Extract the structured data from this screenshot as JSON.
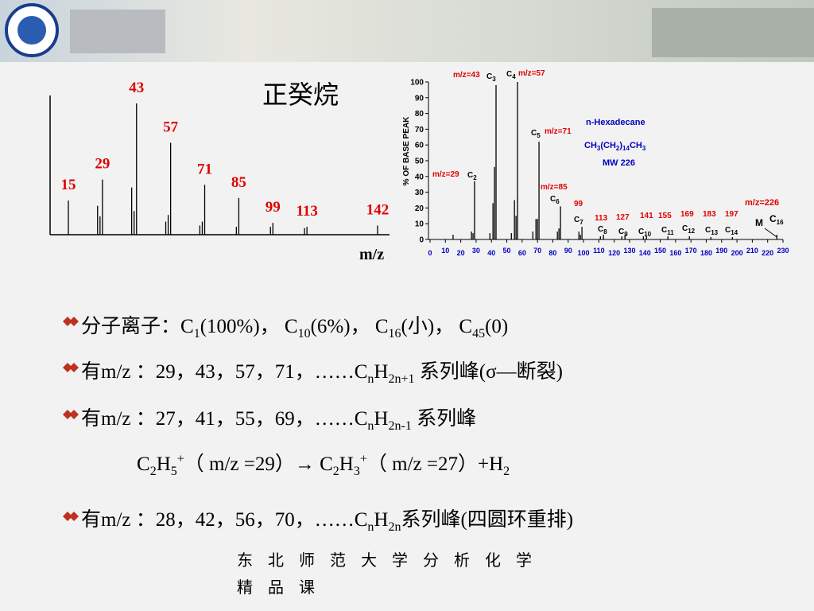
{
  "title": "正癸烷",
  "left_spectrum": {
    "xlabel": "m/z",
    "labeled": {
      "x": [
        15,
        29,
        43,
        57,
        71,
        85,
        99,
        113,
        142
      ],
      "values": [
        26,
        42,
        100,
        70,
        38,
        28,
        9,
        6,
        7
      ]
    },
    "minor": {
      "x": [
        27,
        28,
        41,
        42,
        55,
        56,
        69,
        70,
        84,
        98,
        112
      ],
      "values": [
        22,
        14,
        36,
        18,
        10,
        15,
        7,
        10,
        6,
        6,
        5
      ]
    },
    "color": "#e00000"
  },
  "right_spectrum": {
    "type": "bar",
    "ylabel": "% OF  BASE PEAK",
    "x": [
      15,
      27,
      28,
      29,
      39,
      41,
      42,
      43,
      53,
      55,
      56,
      57,
      67,
      69,
      70,
      71,
      83,
      84,
      85,
      97,
      98,
      99,
      111,
      113,
      125,
      127,
      139,
      141,
      155,
      169,
      183,
      197,
      226
    ],
    "values": [
      3,
      5,
      4,
      37,
      4,
      23,
      46,
      98,
      4,
      25,
      15,
      100,
      5,
      13,
      13,
      62,
      5,
      7,
      21,
      5,
      3,
      8,
      2,
      3,
      2,
      3,
      2,
      2,
      2,
      2,
      1.5,
      1.5,
      3
    ],
    "xlim": [
      0,
      230
    ],
    "ylim": [
      0,
      100
    ],
    "xticks": [
      0,
      10,
      20,
      30,
      40,
      50,
      60,
      70,
      80,
      90,
      100,
      110,
      120,
      130,
      140,
      150,
      160,
      170,
      180,
      190,
      200,
      210,
      220,
      230
    ],
    "yticks": [
      0,
      10,
      20,
      30,
      40,
      50,
      60,
      70,
      80,
      90,
      100
    ],
    "annotations": [
      {
        "color": "#e00000",
        "runs": [
          {
            "t": "m/z=43"
          }
        ]
      },
      {
        "color": "#000000",
        "runs": [
          {
            "t": "C"
          },
          {
            "sub": "3"
          }
        ]
      },
      {
        "color": "#000000",
        "runs": [
          {
            "t": "C"
          },
          {
            "sub": "4"
          }
        ]
      },
      {
        "color": "#e00000",
        "runs": [
          {
            "t": "m/z=57"
          }
        ]
      },
      {
        "color": "#000000",
        "runs": [
          {
            "t": "C"
          },
          {
            "sub": "5"
          }
        ]
      },
      {
        "color": "#e00000",
        "runs": [
          {
            "t": "m/z=71"
          }
        ]
      },
      {
        "color": "#e00000",
        "runs": [
          {
            "t": "m/z=29"
          }
        ]
      },
      {
        "color": "#000000",
        "runs": [
          {
            "t": "C"
          },
          {
            "sub": "2"
          }
        ]
      },
      {
        "color": "#e00000",
        "runs": [
          {
            "t": "m/z=85"
          }
        ]
      },
      {
        "color": "#000000",
        "runs": [
          {
            "t": "C"
          },
          {
            "sub": "6"
          }
        ]
      },
      {
        "color": "#e00000",
        "runs": [
          {
            "t": "99"
          }
        ]
      },
      {
        "color": "#000000",
        "runs": [
          {
            "t": "C"
          },
          {
            "sub": "7"
          }
        ]
      },
      {
        "color": "#e00000",
        "runs": [
          {
            "t": "113"
          }
        ]
      },
      {
        "color": "#000000",
        "runs": [
          {
            "t": "C"
          },
          {
            "sub": "8"
          }
        ]
      },
      {
        "color": "#e00000",
        "runs": [
          {
            "t": "127"
          }
        ]
      },
      {
        "color": "#000000",
        "runs": [
          {
            "t": "C"
          },
          {
            "sub": "9"
          }
        ]
      },
      {
        "color": "#e00000",
        "runs": [
          {
            "t": "141"
          }
        ]
      },
      {
        "color": "#000000",
        "runs": [
          {
            "t": "C"
          },
          {
            "sub": "10"
          }
        ]
      },
      {
        "color": "#e00000",
        "runs": [
          {
            "t": "155"
          }
        ]
      },
      {
        "color": "#000000",
        "runs": [
          {
            "t": "C"
          },
          {
            "sub": "11"
          }
        ]
      },
      {
        "color": "#e00000",
        "runs": [
          {
            "t": "169"
          }
        ]
      },
      {
        "color": "#000000",
        "runs": [
          {
            "t": "C"
          },
          {
            "sub": "12"
          }
        ]
      },
      {
        "color": "#e00000",
        "runs": [
          {
            "t": "183"
          }
        ]
      },
      {
        "color": "#000000",
        "runs": [
          {
            "t": "C"
          },
          {
            "sub": "13"
          }
        ]
      },
      {
        "color": "#e00000",
        "runs": [
          {
            "t": "197"
          }
        ]
      },
      {
        "color": "#000000",
        "runs": [
          {
            "t": "C"
          },
          {
            "sub": "14"
          }
        ]
      },
      {
        "color": "#e00000",
        "runs": [
          {
            "t": "m/z=226"
          }
        ]
      },
      {
        "color": "#000000",
        "runs": [
          {
            "t": "M"
          }
        ]
      },
      {
        "color": "#000000",
        "runs": [
          {
            "t": "C"
          },
          {
            "sub": "16"
          }
        ]
      },
      {
        "color": "#0000c0",
        "runs": [
          {
            "t": "n-Hexadecane"
          }
        ]
      },
      {
        "color": "#0000c0",
        "runs": [
          {
            "t": "CH"
          },
          {
            "sub": "3"
          },
          {
            "t": "(CH"
          },
          {
            "sub": "2"
          },
          {
            "t": ")"
          },
          {
            "sub": "14"
          },
          {
            "t": "CH"
          },
          {
            "sub": "3"
          }
        ]
      },
      {
        "color": "#0000c0",
        "runs": [
          {
            "t": "MW 226"
          }
        ]
      }
    ]
  },
  "bullets": [
    {
      "runs": [
        {
          "t": "分子离子：C"
        },
        {
          "sub": "1"
        },
        {
          "t": "(100%)， C"
        },
        {
          "sub": "10"
        },
        {
          "t": "(6%)， C"
        },
        {
          "sub": "16"
        },
        {
          "t": "(小)， C"
        },
        {
          "sub": "45"
        },
        {
          "t": "(0)"
        }
      ]
    },
    {
      "runs": [
        {
          "t": "有m/z ：29，43，57，71，……C"
        },
        {
          "sub": "n"
        },
        {
          "t": "H"
        },
        {
          "sub": "2n+1"
        },
        {
          "t": " 系列峰(σ—断裂)"
        }
      ]
    },
    {
      "runs": [
        {
          "t": "有m/z ：27，41，55，69，……C"
        },
        {
          "sub": "n"
        },
        {
          "t": "H"
        },
        {
          "sub": "2n-1"
        },
        {
          "t": " 系列峰"
        }
      ]
    },
    {
      "runs": [
        {
          "t": "C"
        },
        {
          "sub": "2"
        },
        {
          "t": "H"
        },
        {
          "sub": "5"
        },
        {
          "sup": "+"
        },
        {
          "t": "（ m/z =29）→ C"
        },
        {
          "sub": "2"
        },
        {
          "t": "H"
        },
        {
          "sub": "3"
        },
        {
          "sup": "+"
        },
        {
          "t": "（ m/z =27）+H"
        },
        {
          "sub": "2"
        }
      ]
    },
    {
      "runs": [
        {
          "t": "有m/z ：28，42，56，70，……C"
        },
        {
          "sub": "n"
        },
        {
          "t": "H"
        },
        {
          "sub": "2n"
        },
        {
          "t": "系列峰(四圆环重排)"
        }
      ]
    }
  ],
  "footer": [
    "东 北 师 范 大 学 分 析 化 学",
    "精 品 课"
  ]
}
